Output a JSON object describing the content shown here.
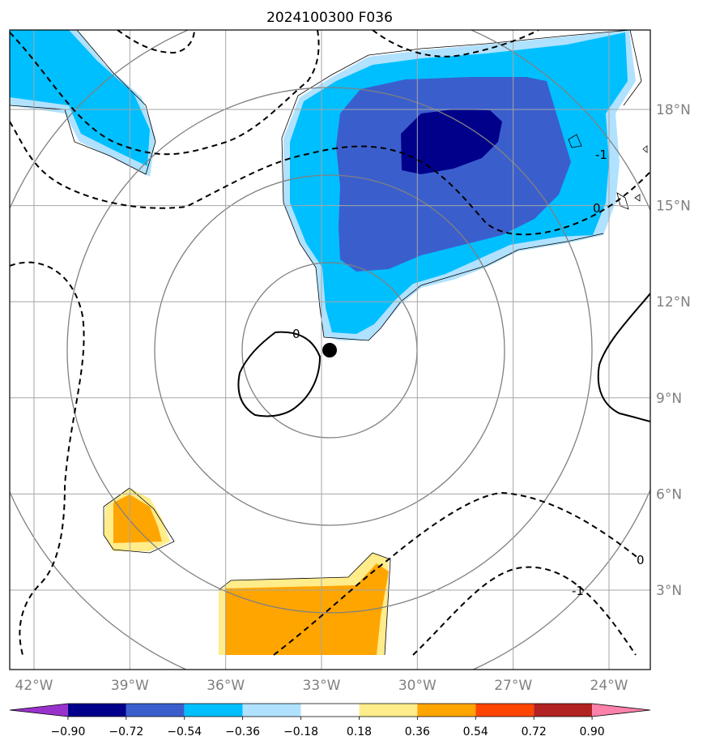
{
  "chart_data": {
    "type": "contour-map",
    "title": "2024100300 F036",
    "lon_ticks": [
      "42°W",
      "39°W",
      "36°W",
      "33°W",
      "30°W",
      "27°W",
      "24°W"
    ],
    "lon_values": [
      -42,
      -39,
      -36,
      -33,
      -30,
      -27,
      -24
    ],
    "lat_ticks": [
      "18°N",
      "15°N",
      "12°N",
      "9°N",
      "6°N",
      "3°N"
    ],
    "lat_values": [
      18,
      15,
      12,
      9,
      6,
      3
    ],
    "colorbar": {
      "levels": [
        -0.9,
        -0.72,
        -0.54,
        -0.36,
        -0.18,
        0.18,
        0.36,
        0.54,
        0.72,
        0.9
      ],
      "labels": [
        "−0.90",
        "−0.72",
        "−0.54",
        "−0.36",
        "−0.18",
        "0.18",
        "0.36",
        "0.54",
        "0.72",
        "0.90"
      ],
      "colors": [
        "#9932cc",
        "#00008b",
        "#3a5fcd",
        "#00bfff",
        "#b0e2ff",
        "#ffffff",
        "#ffec8b",
        "#ffa500",
        "#ff4500",
        "#b22222",
        "#ff82ab"
      ],
      "extend": "both"
    },
    "center_marker": {
      "lon": -32.8,
      "lat": 10.5
    },
    "range_rings": "concentric circles around center",
    "contour_labels": [
      "0",
      "-1",
      "0",
      "-1",
      "0"
    ],
    "grid": true
  }
}
